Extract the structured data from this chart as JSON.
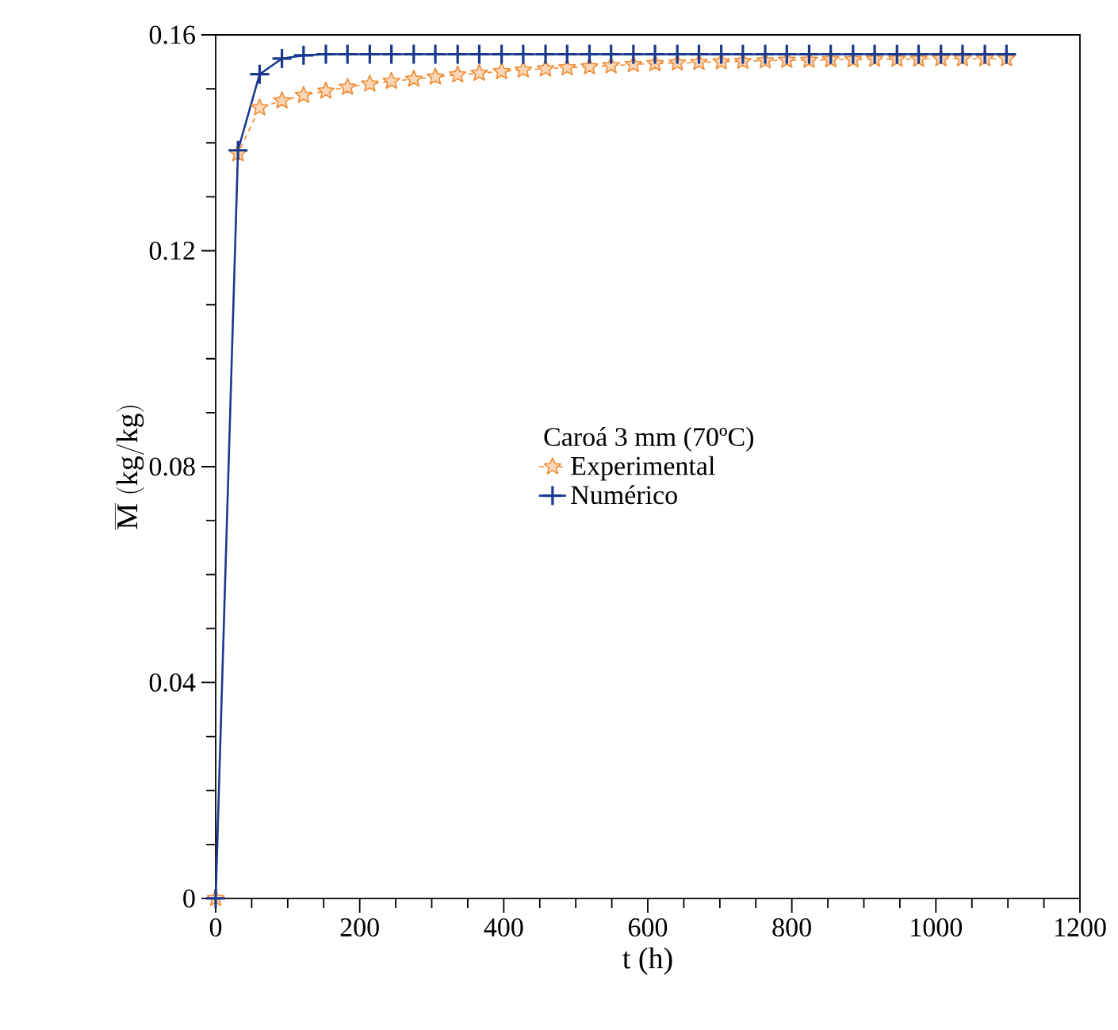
{
  "chart_data": {
    "type": "line",
    "xlabel": "t (h)",
    "ylabel": "\\overline{\\mathrm{M}}\\ (\\mathrm{kg/kg})",
    "legend_title": "Caroá 3 mm (70ºC)",
    "x": [
      0,
      31,
      61,
      92,
      122,
      153,
      183,
      214,
      244,
      275,
      305,
      336,
      366,
      397,
      427,
      458,
      488,
      519,
      549,
      580,
      610,
      641,
      671,
      702,
      732,
      763,
      793,
      824,
      854,
      885,
      915,
      946,
      976,
      1007,
      1037,
      1068,
      1098
    ],
    "series": [
      {
        "name": "Experimental",
        "color": "#f08a30",
        "marker": "star",
        "line_style": "dashed",
        "values": [
          0,
          0.138,
          0.1465,
          0.1478,
          0.1488,
          0.1496,
          0.1503,
          0.1509,
          0.1514,
          0.1518,
          0.1522,
          0.1526,
          0.1529,
          0.1532,
          0.1535,
          0.1537,
          0.1539,
          0.1541,
          0.1543,
          0.1545,
          0.1547,
          0.1548,
          0.1549,
          0.155,
          0.1551,
          0.1552,
          0.1553,
          0.1553,
          0.1554,
          0.1554,
          0.1555,
          0.1555,
          0.1555,
          0.1556,
          0.1556,
          0.1556,
          0.1556
        ]
      },
      {
        "name": "Numérico",
        "color": "#1a3a8f",
        "marker": "cross",
        "line_style": "solid",
        "values": [
          0,
          0.1386,
          0.1527,
          0.1556,
          0.1562,
          0.1564,
          0.1564,
          0.1564,
          0.1564,
          0.1564,
          0.1564,
          0.1564,
          0.1564,
          0.1564,
          0.1564,
          0.1564,
          0.1564,
          0.1564,
          0.1564,
          0.1564,
          0.1564,
          0.1564,
          0.1564,
          0.1564,
          0.1564,
          0.1564,
          0.1564,
          0.1564,
          0.1564,
          0.1564,
          0.1564,
          0.1564,
          0.1564,
          0.1564,
          0.1564,
          0.1564,
          0.1564
        ]
      }
    ],
    "xlim": [
      0,
      1200
    ],
    "xticks": [
      0,
      200,
      400,
      600,
      800,
      1000,
      1200
    ],
    "ylim": [
      0,
      0.16
    ],
    "yticks": [
      0,
      0.04,
      0.08,
      0.12,
      0.16
    ],
    "grid": false,
    "legend": "center"
  }
}
